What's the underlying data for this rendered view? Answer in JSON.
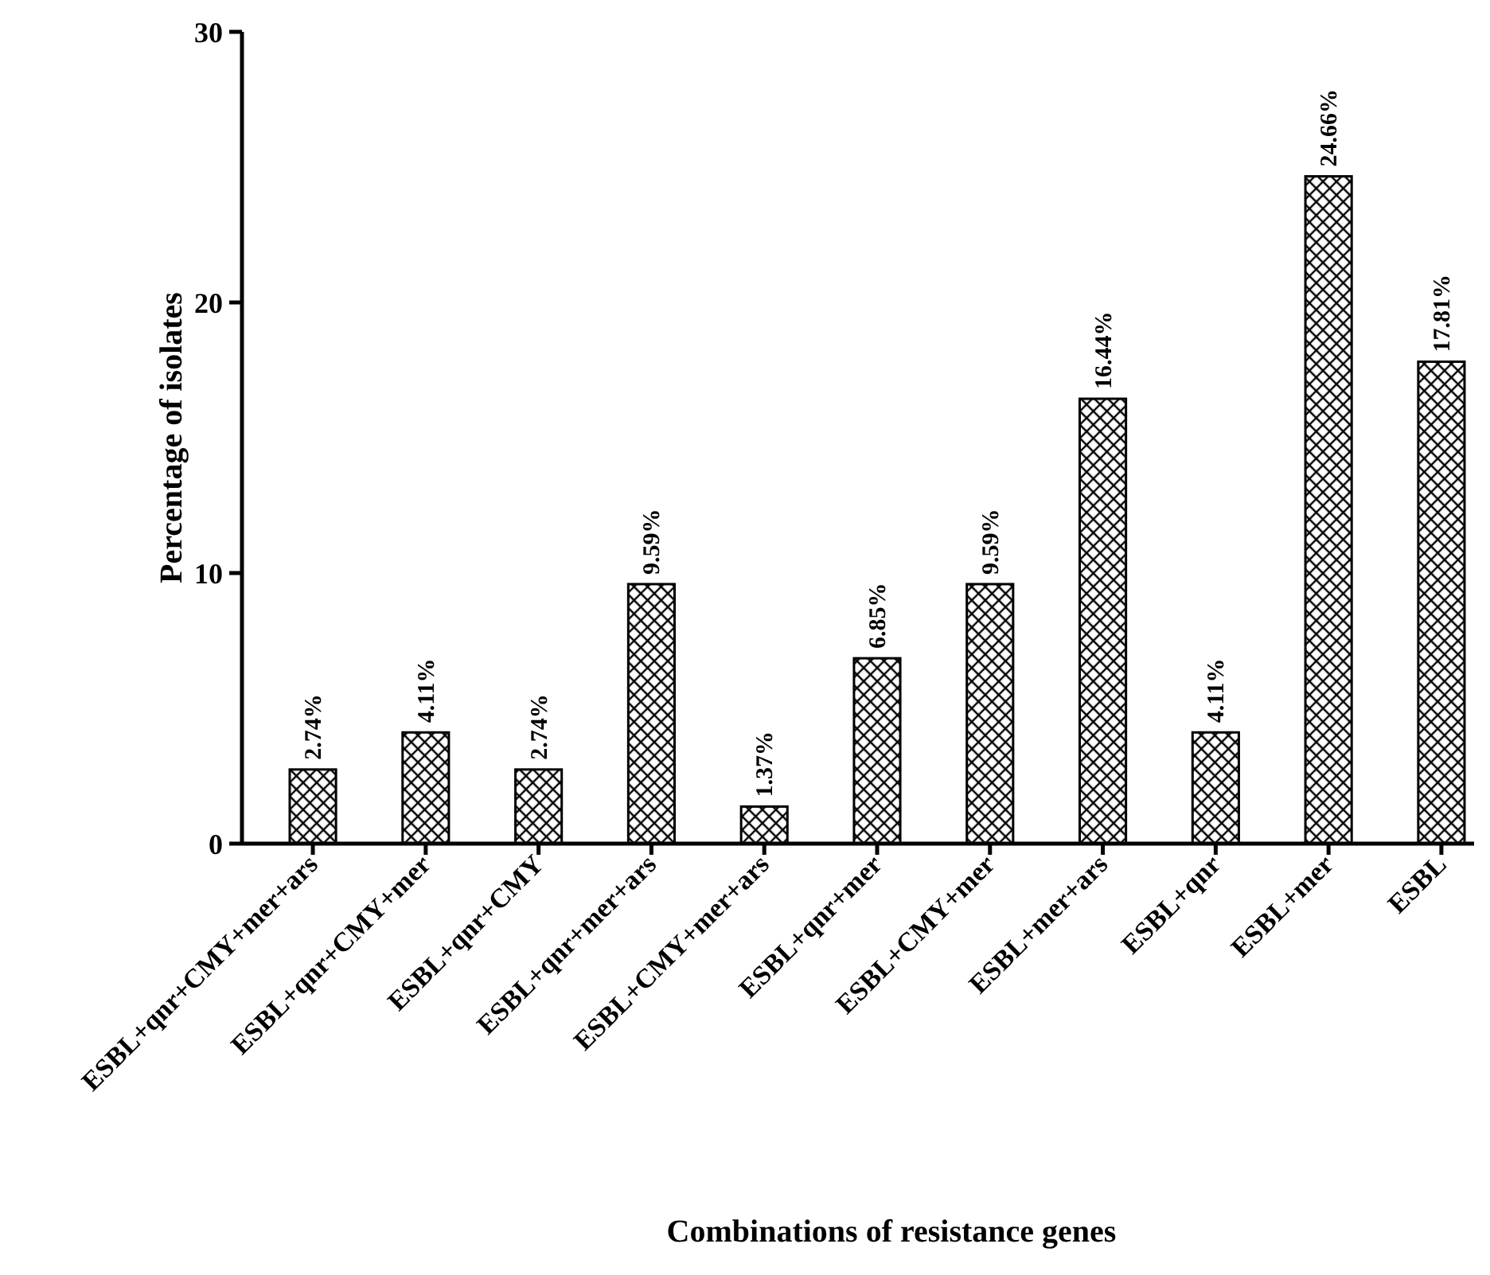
{
  "chart_data": {
    "type": "bar",
    "xlabel": "Combinations of resistance genes",
    "ylabel": "Percentage of isolates",
    "categories": [
      "ESBL+qnr+CMY+mer+ars",
      "ESBL+qnr+CMY+mer",
      "ESBL+qnr+CMY",
      "ESBL+qnr+mer+ars",
      "ESBL+CMY+mer+ars",
      "ESBL+qnr+mer",
      "ESBL+CMY+mer",
      "ESBL+mer+ars",
      "ESBL+qnr",
      "ESBL+mer",
      "ESBL"
    ],
    "values": [
      2.74,
      4.11,
      2.74,
      9.59,
      1.37,
      6.85,
      9.59,
      16.44,
      4.11,
      24.66,
      17.81
    ],
    "value_labels": [
      "2.74%",
      "4.11%",
      "2.74%",
      "9.59%",
      "1.37%",
      "6.85%",
      "9.59%",
      "16.44%",
      "4.11%",
      "24.66%",
      "17.81%"
    ],
    "color": "#000000",
    "ylim": [
      0,
      30
    ],
    "yticks": [
      0,
      10,
      20,
      30
    ],
    "grid": false
  }
}
